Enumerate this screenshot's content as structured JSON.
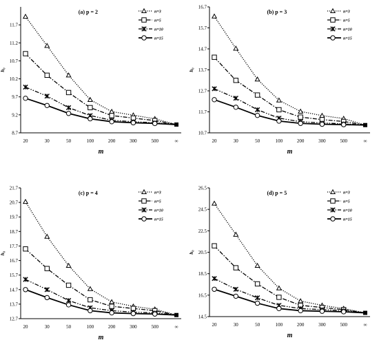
{
  "chart_data": [
    {
      "type": "line",
      "panel_label": "(a) p = 2",
      "ylabel": "h₀",
      "xlabel": "m",
      "categories": [
        "20",
        "30",
        "50",
        "100",
        "200",
        "300",
        "500",
        "∞"
      ],
      "ylim": [
        8.7,
        12.2
      ],
      "yticks": [
        "8.7",
        "9.2",
        "9.7",
        "10.2",
        "10.7",
        "11.2",
        "11.7"
      ],
      "legend_position": "top-right",
      "series": [
        {
          "name": "n=3",
          "marker": "triangle",
          "style": "dotted",
          "values": [
            11.93,
            11.12,
            10.3,
            9.62,
            9.29,
            9.19,
            9.09,
            8.93
          ]
        },
        {
          "name": "n=5",
          "marker": "square",
          "style": "dashdot",
          "values": [
            10.9,
            10.3,
            9.82,
            9.4,
            9.18,
            9.11,
            9.04,
            8.93
          ]
        },
        {
          "name": "n=10",
          "marker": "cross",
          "style": "dashdotdot",
          "values": [
            9.97,
            9.72,
            9.4,
            9.18,
            9.05,
            9.01,
            8.98,
            8.93
          ]
        },
        {
          "name": "n=15",
          "marker": "circle",
          "style": "solid",
          "values": [
            9.66,
            9.46,
            9.24,
            9.09,
            9.01,
            8.98,
            8.96,
            8.93
          ]
        }
      ]
    },
    {
      "type": "line",
      "panel_label": "(b) p = 3",
      "ylabel": "h₀",
      "xlabel": "m",
      "categories": [
        "20",
        "30",
        "50",
        "100",
        "200",
        "300",
        "500",
        "∞"
      ],
      "ylim": [
        10.7,
        16.7
      ],
      "yticks": [
        "10.7",
        "11.7",
        "12.7",
        "13.7",
        "14.7",
        "15.7",
        "16.7"
      ],
      "legend_position": "top-right",
      "series": [
        {
          "name": "n=3",
          "marker": "triangle",
          "style": "dotted",
          "values": [
            16.25,
            14.72,
            13.25,
            12.25,
            11.72,
            11.52,
            11.38,
            11.07
          ]
        },
        {
          "name": "n=5",
          "marker": "square",
          "style": "dashdot",
          "values": [
            14.3,
            13.2,
            12.5,
            11.8,
            11.45,
            11.33,
            11.24,
            11.07
          ]
        },
        {
          "name": "n=10",
          "marker": "cross",
          "style": "dashdotdot",
          "values": [
            12.8,
            12.35,
            11.8,
            11.4,
            11.23,
            11.17,
            11.13,
            11.07
          ]
        },
        {
          "name": "n=15",
          "marker": "circle",
          "style": "solid",
          "values": [
            12.28,
            11.92,
            11.53,
            11.26,
            11.15,
            11.11,
            11.09,
            11.07
          ]
        }
      ]
    },
    {
      "type": "line",
      "panel_label": "(c) p = 4",
      "ylabel": "h₀",
      "xlabel": "m",
      "categories": [
        "20",
        "30",
        "50",
        "100",
        "200",
        "300",
        "500",
        "∞"
      ],
      "ylim": [
        12.7,
        21.7
      ],
      "yticks": [
        "12.7",
        "13.7",
        "14.7",
        "15.7",
        "16.7",
        "17.7",
        "18.7",
        "19.7",
        "20.7",
        "21.7"
      ],
      "legend_position": "top-right",
      "series": [
        {
          "name": "n=3",
          "marker": "triangle",
          "style": "dotted",
          "values": [
            20.75,
            18.35,
            16.35,
            14.75,
            13.85,
            13.55,
            13.35,
            12.95
          ]
        },
        {
          "name": "n=5",
          "marker": "square",
          "style": "dashdot",
          "values": [
            17.5,
            16.15,
            15.0,
            14.0,
            13.55,
            13.4,
            13.25,
            12.95
          ]
        },
        {
          "name": "n=10",
          "marker": "cross",
          "style": "dashdotdot",
          "values": [
            15.4,
            14.7,
            13.95,
            13.45,
            13.25,
            13.15,
            13.1,
            12.95
          ]
        },
        {
          "name": "n=15",
          "marker": "circle",
          "style": "solid",
          "values": [
            14.7,
            14.15,
            13.65,
            13.25,
            13.1,
            13.05,
            13.02,
            12.95
          ]
        }
      ]
    },
    {
      "type": "line",
      "panel_label": "(d) p = 5",
      "ylabel": "h₀",
      "xlabel": "m",
      "categories": [
        "20",
        "30",
        "50",
        "100",
        "200",
        "300",
        "500",
        "∞"
      ],
      "ylim": [
        14.5,
        26.5
      ],
      "yticks": [
        "14.5",
        "16.5",
        "18.5",
        "20.5",
        "22.5",
        "24.5",
        "26.5"
      ],
      "legend_position": "top-right",
      "series": [
        {
          "name": "n=3",
          "marker": "triangle",
          "style": "dotted",
          "values": [
            25.05,
            22.15,
            19.25,
            17.15,
            15.95,
            15.55,
            15.25,
            14.85
          ]
        },
        {
          "name": "n=5",
          "marker": "square",
          "style": "dashdot",
          "values": [
            21.1,
            19.05,
            17.55,
            16.3,
            15.55,
            15.35,
            15.15,
            14.85
          ]
        },
        {
          "name": "n=10",
          "marker": "cross",
          "style": "dashdotdot",
          "values": [
            18.05,
            17.05,
            16.25,
            15.55,
            15.25,
            15.15,
            15.05,
            14.85
          ]
        },
        {
          "name": "n=15",
          "marker": "circle",
          "style": "solid",
          "values": [
            17.05,
            16.4,
            15.75,
            15.25,
            15.05,
            15.0,
            14.95,
            14.85
          ]
        }
      ]
    }
  ]
}
